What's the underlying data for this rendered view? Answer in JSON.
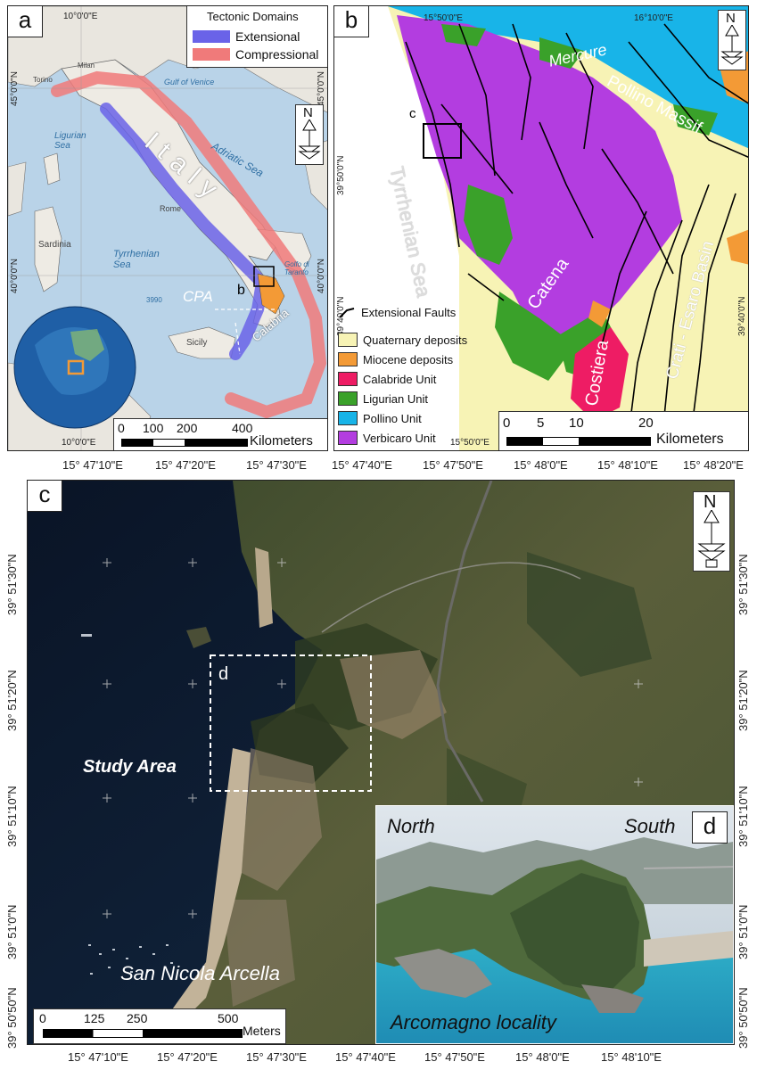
{
  "panels": {
    "a": {
      "letter": "a",
      "legend_title": "Tectonic Domains",
      "legend_items": [
        {
          "label": "Extensional",
          "color": "#6a63e8"
        },
        {
          "label": "Compressional",
          "color": "#f07a7a"
        }
      ],
      "coords_top": "10°0'0\"E",
      "coords_bottom": "10°0'0\"E",
      "coords_left": [
        "45°0'0\"N",
        "40°0'0\"N"
      ],
      "coords_right": [
        "45°0'0\"N",
        "40°0'0\"N"
      ],
      "place_labels": {
        "italy": "Italy",
        "adriatic": "Adriatic Sea",
        "tyrrhenian": "Tyrrhenian Sea",
        "ligurian": "Ligurian Sea",
        "sardinia": "Sardinia",
        "sicily": "Sicily",
        "cpa": "CPA",
        "calabria": "Calabria",
        "gulf_venice": "Gulf of Venice",
        "golfo_taranto": "Golfo di Taranto",
        "rome": "Rome",
        "milan": "Milan",
        "torino": "Torino",
        "inset_b": "b",
        "depth": "3990"
      },
      "scale": {
        "ticks": [
          "0",
          "100",
          "200",
          "400"
        ],
        "unit": "Kilometers"
      }
    },
    "b": {
      "letter": "b",
      "coords_top": [
        "15°50'0\"E",
        "16°10'0\"E"
      ],
      "coords_bottom": "15°50'0\"E",
      "coords_left": [
        "39°50'0\"N",
        "39°40'0\"N"
      ],
      "coords_right": "39°40'0\"N",
      "place_labels": {
        "mercure": "Mercure",
        "pollino": "Pollino Massif",
        "tyrrhenian": "Tyrrhenian Sea",
        "catena": "Catena",
        "costiera": "Costiera",
        "crati": "Crati - Esaro Basin",
        "inset_c": "c"
      },
      "legend": [
        {
          "label": "Extensional Faults",
          "type": "fault"
        },
        {
          "label": "Quaternary deposits",
          "color": "#f7f3b5"
        },
        {
          "label": "Miocene deposits",
          "color": "#f39a36"
        },
        {
          "label": "Calabride Unit",
          "color": "#ee1c64"
        },
        {
          "label": "Ligurian Unit",
          "color": "#3aa12a"
        },
        {
          "label": "Pollino Unit",
          "color": "#18b4e8"
        },
        {
          "label": "Verbicaro Unit",
          "color": "#b33de0"
        }
      ],
      "scale": {
        "ticks": [
          "0",
          "5",
          "10",
          "20"
        ],
        "unit": "Kilometers"
      }
    },
    "c": {
      "letter": "c",
      "coords_top": [
        "15° 47'10\"E",
        "15° 47'20\"E",
        "15° 47'30\"E",
        "15° 47'40\"E",
        "15° 47'50\"E",
        "15° 48'0\"E",
        "15° 48'10\"E",
        "15° 48'20\"E"
      ],
      "coords_bottom": [
        "15° 47'10\"E",
        "15° 47'20\"E",
        "15° 47'30\"E",
        "15° 47'40\"E",
        "15° 47'50\"E",
        "15° 48'0\"E",
        "15° 48'10\"E"
      ],
      "coords_left": [
        "39° 51'30\"N",
        "39° 51'20\"N",
        "39° 51'10\"N",
        "39° 51'0\"N",
        "39° 50'50\"N"
      ],
      "coords_right": [
        "39° 51'30\"N",
        "39° 51'20\"N",
        "39° 51'10\"N",
        "39° 51'0\"N",
        "39° 50'50\"N"
      ],
      "study_area": "Study Area",
      "san_nicola": "San Nicola Arcella",
      "inset_d": "d",
      "scale": {
        "ticks": [
          "0",
          "125",
          "250",
          "500"
        ],
        "unit": "Meters"
      }
    },
    "d": {
      "letter": "d",
      "north": "North",
      "south": "South",
      "locality": "Arcomagno locality"
    }
  },
  "north_arrow": "N"
}
